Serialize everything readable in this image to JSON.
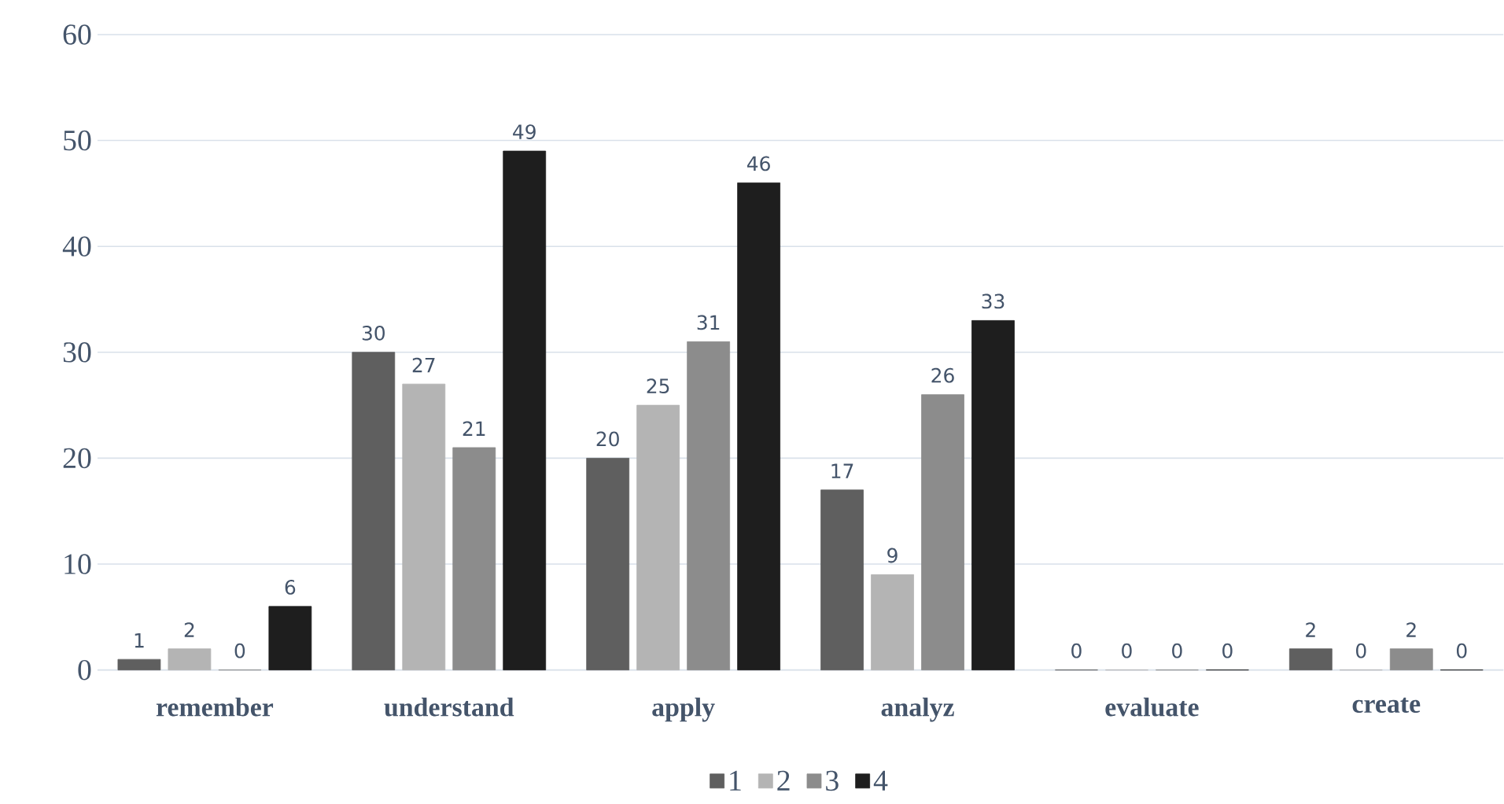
{
  "chart_data": {
    "type": "bar",
    "categories": [
      "remember",
      "understand",
      "apply",
      "analyz",
      "evaluate",
      "create"
    ],
    "series": [
      {
        "name": "1",
        "color": "#5f5f5f",
        "values": [
          1,
          30,
          20,
          17,
          0,
          2
        ]
      },
      {
        "name": "2",
        "color": "#b4b4b4",
        "values": [
          2,
          27,
          25,
          9,
          0,
          0
        ]
      },
      {
        "name": "3",
        "color": "#8c8c8c",
        "values": [
          0,
          21,
          31,
          26,
          0,
          2
        ]
      },
      {
        "name": "4",
        "color": "#1e1e1e",
        "values": [
          6,
          49,
          46,
          33,
          0,
          0
        ]
      }
    ],
    "ylim": [
      0,
      60
    ],
    "yticks": [
      0,
      10,
      20,
      30,
      40,
      50,
      60
    ],
    "grid": "y",
    "legend": "bottom",
    "data_labels": true
  }
}
